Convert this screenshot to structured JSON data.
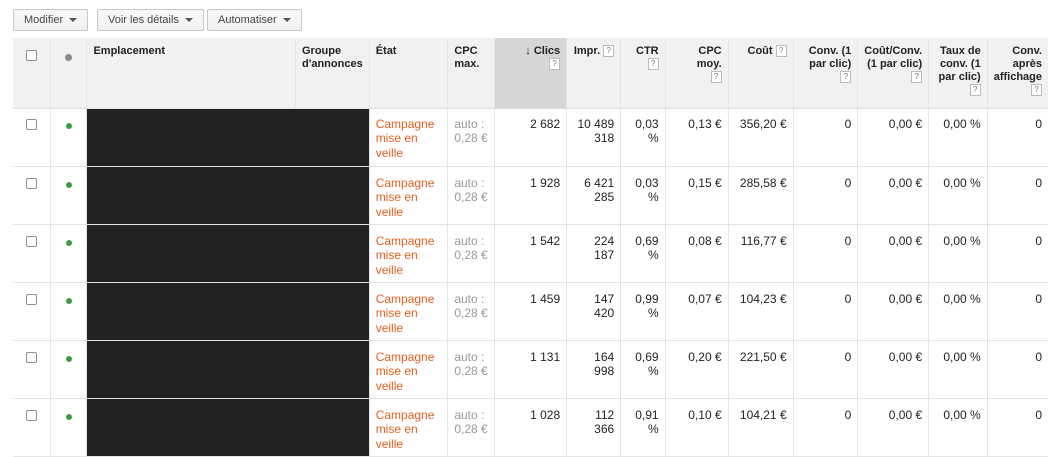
{
  "toolbar": {
    "modify": "Modifier",
    "details": "Voir les détails",
    "automate": "Automatiser"
  },
  "columns": {
    "placement": "Emplacement",
    "adgroup": "Groupe d'annonces",
    "status": "État",
    "max_cpc": "CPC max.",
    "clicks": "Clics",
    "impressions": "Impr.",
    "ctr": "CTR",
    "avg_cpc": "CPC moy.",
    "cost": "Coût",
    "conv": "Conv. (1 par clic)",
    "cost_conv": "Coût/Conv. (1 par clic)",
    "conv_rate": "Taux de conv. (1 par clic)",
    "view_conv": "Conv. après affichage"
  },
  "help_mark": "?",
  "sort_arrow": "↓",
  "colors": {
    "status_orange": "#e35f1d",
    "enabled_green": "#3d9b47",
    "header_grey": "#f1f1f1",
    "sorted_header": "#d6d6d6",
    "redacted": "#222222"
  },
  "rows": [
    {
      "status": "Campagne mise en veille",
      "max_cpc": "auto : 0,28 €",
      "clicks": "2 682",
      "impressions": "10 489 318",
      "ctr": "0,03 %",
      "avg_cpc": "0,13 €",
      "cost": "356,20 €",
      "conv": "0",
      "cost_conv": "0,00 €",
      "conv_rate": "0,00 %",
      "view_conv": "0"
    },
    {
      "status": "Campagne mise en veille",
      "max_cpc": "auto : 0,28 €",
      "clicks": "1 928",
      "impressions": "6 421 285",
      "ctr": "0,03 %",
      "avg_cpc": "0,15 €",
      "cost": "285,58 €",
      "conv": "0",
      "cost_conv": "0,00 €",
      "conv_rate": "0,00 %",
      "view_conv": "0"
    },
    {
      "status": "Campagne mise en veille",
      "max_cpc": "auto : 0,28 €",
      "clicks": "1 542",
      "impressions": "224 187",
      "ctr": "0,69 %",
      "avg_cpc": "0,08 €",
      "cost": "116,77 €",
      "conv": "0",
      "cost_conv": "0,00 €",
      "conv_rate": "0,00 %",
      "view_conv": "0"
    },
    {
      "status": "Campagne mise en veille",
      "max_cpc": "auto : 0,28 €",
      "clicks": "1 459",
      "impressions": "147 420",
      "ctr": "0,99 %",
      "avg_cpc": "0,07 €",
      "cost": "104,23 €",
      "conv": "0",
      "cost_conv": "0,00 €",
      "conv_rate": "0,00 %",
      "view_conv": "0"
    },
    {
      "status": "Campagne mise en veille",
      "max_cpc": "auto : 0,28 €",
      "clicks": "1 131",
      "impressions": "164 998",
      "ctr": "0,69 %",
      "avg_cpc": "0,20 €",
      "cost": "221,50 €",
      "conv": "0",
      "cost_conv": "0,00 €",
      "conv_rate": "0,00 %",
      "view_conv": "0"
    },
    {
      "status": "Campagne mise en veille",
      "max_cpc": "auto : 0,28 €",
      "clicks": "1 028",
      "impressions": "112 366",
      "ctr": "0,91 %",
      "avg_cpc": "0,10 €",
      "cost": "104,21 €",
      "conv": "0",
      "cost_conv": "0,00 €",
      "conv_rate": "0,00 %",
      "view_conv": "0"
    }
  ]
}
